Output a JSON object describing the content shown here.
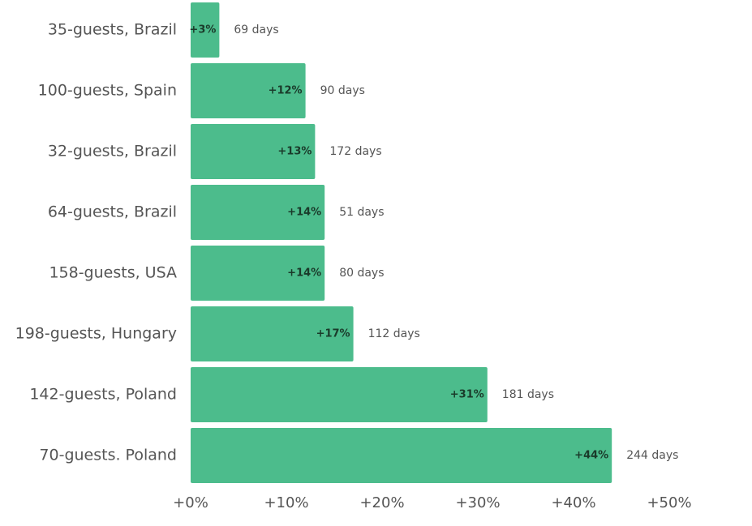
{
  "colors": {
    "bar": "#4cbc8c",
    "text": "#555555",
    "bar_text": "#1a3a2a",
    "axis": "#9a9a9a"
  },
  "chart_data": {
    "type": "bar",
    "orientation": "horizontal",
    "title": "",
    "xlabel": "",
    "ylabel": "",
    "xlim": [
      0,
      50
    ],
    "ticks": [
      0,
      10,
      20,
      30,
      40,
      50
    ],
    "tick_labels": [
      "+0%",
      "+10%",
      "+20%",
      "+30%",
      "+40%",
      "+50%"
    ],
    "grid": false,
    "categories": [
      "35-guests, Brazil",
      "100-guests, Spain",
      "32-guests, Brazil",
      "64-guests, Brazil",
      "158-guests, USA",
      "198-guests, Hungary",
      "142-guests, Poland",
      "70-guests. Poland"
    ],
    "values": [
      3,
      12,
      13,
      14,
      14,
      17,
      31,
      44
    ],
    "value_labels": [
      "+3%",
      "+12%",
      "+13%",
      "+14%",
      "+14%",
      "+17%",
      "+31%",
      "+44%"
    ],
    "annotations": [
      "69 days",
      "90 days",
      "172 days",
      "51 days",
      "80 days",
      "112 days",
      "181 days",
      "244 days"
    ]
  }
}
